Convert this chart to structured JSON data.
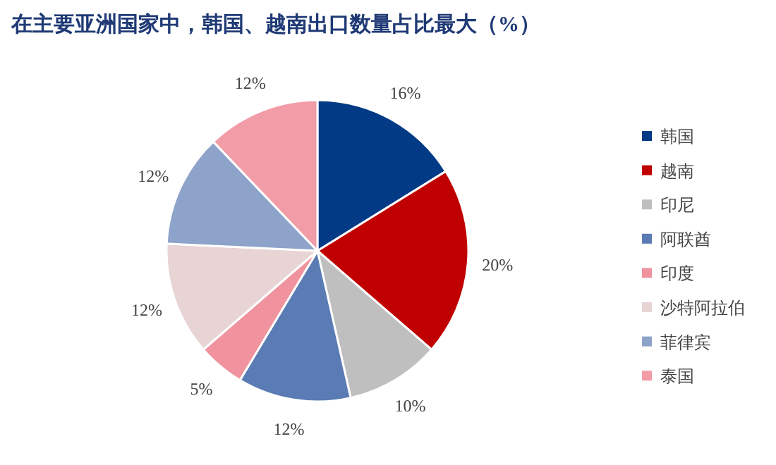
{
  "chart_data": {
    "type": "pie",
    "title": "在主要亚洲国家中，韩国、越南出口数量占比最大（%）",
    "categories": [
      "韩国",
      "越南",
      "印尼",
      "阿联酋",
      "印度",
      "沙特阿拉伯",
      "菲律宾",
      "泰国"
    ],
    "values": [
      16,
      20,
      10,
      12,
      5,
      12,
      12,
      12
    ],
    "colors": [
      "#033a86",
      "#c00000",
      "#bfbfbf",
      "#5a7bb4",
      "#f0939f",
      "#e8d3d5",
      "#8da3c9",
      "#f19ca6"
    ],
    "value_labels": [
      "16%",
      "20%",
      "10%",
      "12%",
      "5%",
      "12%",
      "12%",
      "12%"
    ],
    "legend": "right"
  }
}
